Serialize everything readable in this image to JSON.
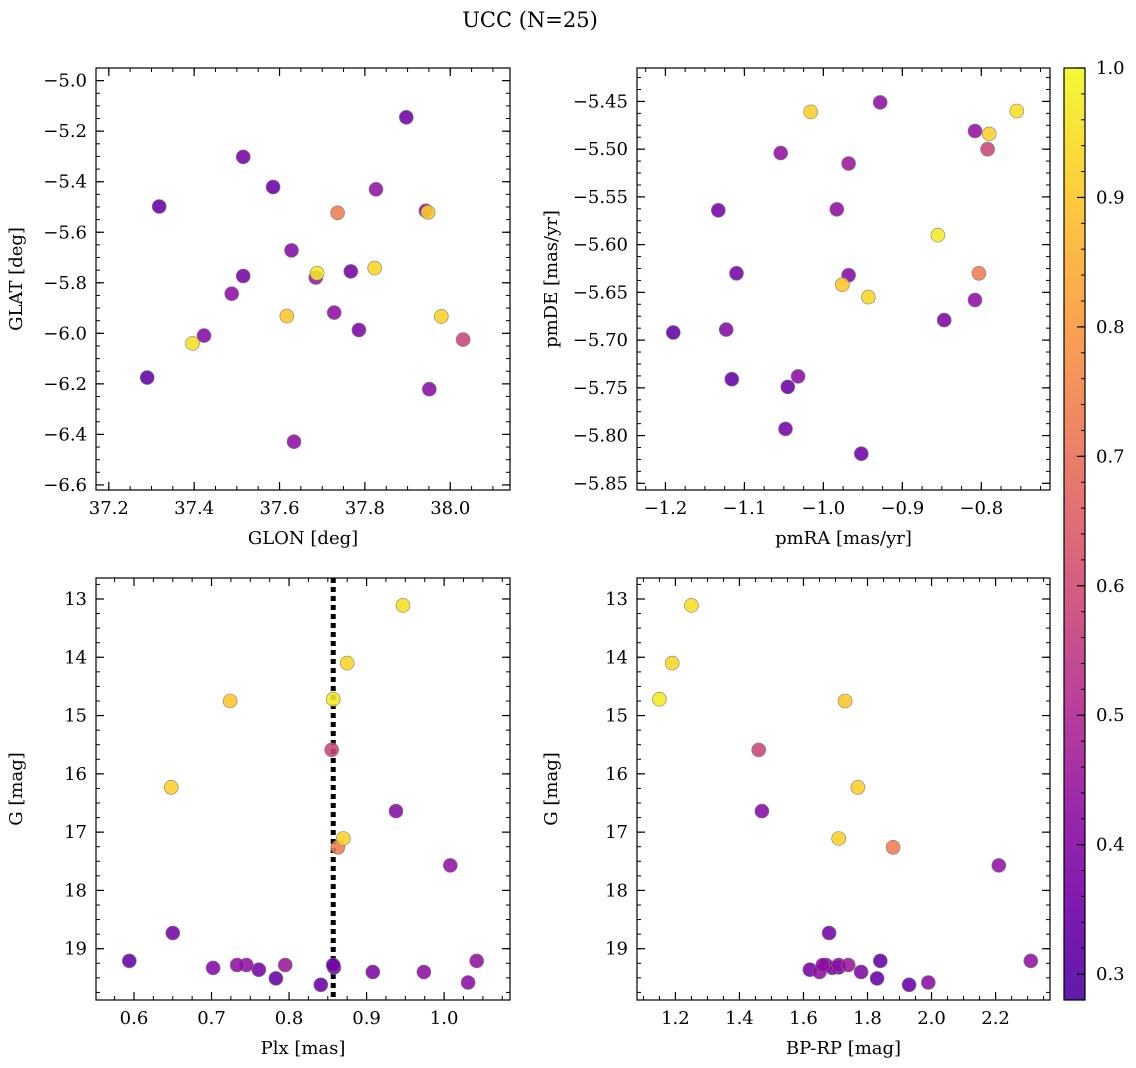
{
  "title": "UCC (N=25)",
  "chart_data": {
    "type": "scatter",
    "colormap": "plasma",
    "colorbar": {
      "range": [
        0.28,
        1.0
      ],
      "ticks": [
        0.3,
        0.4,
        0.5,
        0.6,
        0.7,
        0.8,
        0.9,
        1.0
      ],
      "tick_labels": [
        "0.3",
        "0.4",
        "0.5",
        "0.6",
        "0.7",
        "0.8",
        "0.9",
        "1.0"
      ]
    },
    "stars": [
      {
        "glon": 37.29,
        "glat": -6.175,
        "pmra": -1.19,
        "pmde": -5.692,
        "plx": 0.594,
        "g": 19.21,
        "bprp": 1.84,
        "p": 0.32
      },
      {
        "glon": 37.318,
        "glat": -5.498,
        "pmra": -1.116,
        "pmde": -5.741,
        "plx": 0.783,
        "g": 19.51,
        "bprp": 1.83,
        "p": 0.33
      },
      {
        "glon": 37.396,
        "glat": -6.04,
        "pmra": -0.755,
        "pmde": -5.46,
        "plx": 0.947,
        "g": 13.11,
        "bprp": 1.25,
        "p": 0.95
      },
      {
        "glon": 37.423,
        "glat": -6.009,
        "pmra": -1.123,
        "pmde": -5.689,
        "plx": 0.702,
        "g": 19.33,
        "bprp": 1.69,
        "p": 0.4
      },
      {
        "glon": 37.488,
        "glat": -5.843,
        "pmra": -0.983,
        "pmde": -5.563,
        "plx": 0.974,
        "g": 19.4,
        "bprp": 1.65,
        "p": 0.42
      },
      {
        "glon": 37.515,
        "glat": -5.302,
        "pmra": -1.11,
        "pmde": -5.63,
        "plx": 0.761,
        "g": 19.36,
        "bprp": 1.62,
        "p": 0.36
      },
      {
        "glon": 37.515,
        "glat": -5.773,
        "pmra": -1.048,
        "pmde": -5.793,
        "plx": 0.65,
        "g": 18.73,
        "bprp": 1.68,
        "p": 0.37
      },
      {
        "glon": 37.585,
        "glat": -5.421,
        "pmra": -1.045,
        "pmde": -5.749,
        "plx": 0.841,
        "g": 19.62,
        "bprp": 1.93,
        "p": 0.34
      },
      {
        "glon": 37.617,
        "glat": -5.932,
        "pmra": -0.976,
        "pmde": -5.642,
        "plx": 0.724,
        "g": 14.75,
        "bprp": 1.73,
        "p": 0.9
      },
      {
        "glon": 37.628,
        "glat": -5.672,
        "pmra": -0.968,
        "pmde": -5.632,
        "plx": 0.938,
        "g": 16.64,
        "bprp": 1.47,
        "p": 0.4
      },
      {
        "glon": 37.634,
        "glat": -6.429,
        "pmra": -0.928,
        "pmde": -5.451,
        "plx": 0.745,
        "g": 19.28,
        "bprp": 1.71,
        "p": 0.42
      },
      {
        "glon": 37.685,
        "glat": -5.779,
        "pmra": -0.968,
        "pmde": -5.515,
        "plx": 0.795,
        "g": 19.28,
        "bprp": 1.74,
        "p": 0.45
      },
      {
        "glon": 37.688,
        "glat": -5.762,
        "pmra": -0.855,
        "pmde": -5.59,
        "plx": 0.857,
        "g": 14.72,
        "bprp": 1.15,
        "p": 0.97
      },
      {
        "glon": 37.728,
        "glat": -5.918,
        "pmra": -0.808,
        "pmde": -5.658,
        "plx": 0.733,
        "g": 19.28,
        "bprp": 1.66,
        "p": 0.42
      },
      {
        "glon": 37.736,
        "glat": -5.523,
        "pmra": -0.803,
        "pmde": -5.63,
        "plx": 0.863,
        "g": 17.26,
        "bprp": 1.88,
        "p": 0.73
      },
      {
        "glon": 37.767,
        "glat": -5.755,
        "pmra": -1.133,
        "pmde": -5.564,
        "plx": 0.857,
        "g": 19.28,
        "bprp": 1.67,
        "p": 0.36
      },
      {
        "glon": 37.786,
        "glat": -5.987,
        "pmra": -0.847,
        "pmde": -5.679,
        "plx": 0.908,
        "g": 19.4,
        "bprp": 1.78,
        "p": 0.38
      },
      {
        "glon": 37.823,
        "glat": -5.742,
        "pmra": -0.943,
        "pmde": -5.655,
        "plx": 0.875,
        "g": 14.1,
        "bprp": 1.19,
        "p": 0.93
      },
      {
        "glon": 37.826,
        "glat": -5.43,
        "pmra": -1.054,
        "pmde": -5.504,
        "plx": 1.042,
        "g": 19.21,
        "bprp": 2.31,
        "p": 0.43
      },
      {
        "glon": 37.897,
        "glat": -5.145,
        "pmra": -0.952,
        "pmde": -5.819,
        "plx": 0.858,
        "g": 19.32,
        "bprp": 1.71,
        "p": 0.35
      },
      {
        "glon": 37.943,
        "glat": -5.515,
        "pmra": -0.808,
        "pmde": -5.481,
        "plx": 1.008,
        "g": 17.57,
        "bprp": 2.21,
        "p": 0.43
      },
      {
        "glon": 37.948,
        "glat": -5.521,
        "pmra": -1.016,
        "pmde": -5.461,
        "plx": 0.87,
        "g": 17.11,
        "bprp": 1.71,
        "p": 0.92
      },
      {
        "glon": 37.951,
        "glat": -6.221,
        "pmra": -1.032,
        "pmde": -5.738,
        "plx": 1.031,
        "g": 19.58,
        "bprp": 1.99,
        "p": 0.41
      },
      {
        "glon": 37.979,
        "glat": -5.933,
        "pmra": -0.79,
        "pmde": -5.484,
        "plx": 0.648,
        "g": 16.23,
        "bprp": 1.77,
        "p": 0.92
      },
      {
        "glon": 38.03,
        "glat": -6.025,
        "pmra": -0.792,
        "pmde": -5.5,
        "plx": 0.855,
        "g": 15.59,
        "bprp": 1.46,
        "p": 0.58
      }
    ],
    "panels": [
      {
        "id": "glon-glat",
        "x_key": "glon",
        "y_key": "glat",
        "xlabel": "GLON [deg]",
        "ylabel": "GLAT [deg]",
        "xlim": [
          37.17,
          38.14
        ],
        "ylim": [
          -6.62,
          -4.95
        ],
        "invert_y": false,
        "xticks": [
          37.2,
          37.4,
          37.6,
          37.8,
          38.0
        ],
        "xtick_labels": [
          "37.2",
          "37.4",
          "37.6",
          "37.8",
          "38.0"
        ],
        "yticks": [
          -5.0,
          -5.2,
          -5.4,
          -5.6,
          -5.8,
          -6.0,
          -6.2,
          -6.4,
          -6.6
        ],
        "ytick_labels": [
          "−5.0",
          "−5.2",
          "−5.4",
          "−5.6",
          "−5.8",
          "−6.0",
          "−6.2",
          "−6.4",
          "−6.6"
        ]
      },
      {
        "id": "pmra-pmde",
        "x_key": "pmra",
        "y_key": "pmde",
        "xlabel": "pmRA [mas/yr]",
        "ylabel": "pmDE [mas/yr]",
        "xlim": [
          -1.236,
          -0.713
        ],
        "ylim": [
          -5.857,
          -5.415
        ],
        "invert_y": false,
        "xticks": [
          -1.2,
          -1.1,
          -1.0,
          -0.9,
          -0.8
        ],
        "xtick_labels": [
          "−1.2",
          "−1.1",
          "−1.0",
          "−0.9",
          "−0.8"
        ],
        "yticks": [
          -5.45,
          -5.5,
          -5.55,
          -5.6,
          -5.65,
          -5.7,
          -5.75,
          -5.8,
          -5.85
        ],
        "ytick_labels": [
          "−5.45",
          "−5.50",
          "−5.55",
          "−5.60",
          "−5.65",
          "−5.70",
          "−5.75",
          "−5.80",
          "−5.85"
        ]
      },
      {
        "id": "plx-g",
        "x_key": "plx",
        "y_key": "g",
        "xlabel": "Plx [mas]",
        "ylabel": "G [mag]",
        "xlim": [
          0.551,
          1.085
        ],
        "ylim": [
          12.64,
          19.88
        ],
        "invert_y": true,
        "xticks": [
          0.6,
          0.7,
          0.8,
          0.9,
          1.0
        ],
        "xtick_labels": [
          "0.6",
          "0.7",
          "0.8",
          "0.9",
          "1.0"
        ],
        "yticks": [
          13,
          14,
          15,
          16,
          17,
          18,
          19
        ],
        "ytick_labels": [
          "13",
          "14",
          "15",
          "16",
          "17",
          "18",
          "19"
        ],
        "vline": 0.857
      },
      {
        "id": "bprp-g",
        "x_key": "bprp",
        "y_key": "g",
        "xlabel": "BP-RP [mag]",
        "ylabel": "G [mag]",
        "xlim": [
          1.08,
          2.37
        ],
        "ylim": [
          12.64,
          19.88
        ],
        "invert_y": true,
        "xticks": [
          1.2,
          1.4,
          1.6,
          1.8,
          2.0,
          2.2
        ],
        "xtick_labels": [
          "1.2",
          "1.4",
          "1.6",
          "1.8",
          "2.0",
          "2.2"
        ],
        "yticks": [
          13,
          14,
          15,
          16,
          17,
          18,
          19
        ],
        "ytick_labels": [
          "13",
          "14",
          "15",
          "16",
          "17",
          "18",
          "19"
        ]
      }
    ]
  }
}
